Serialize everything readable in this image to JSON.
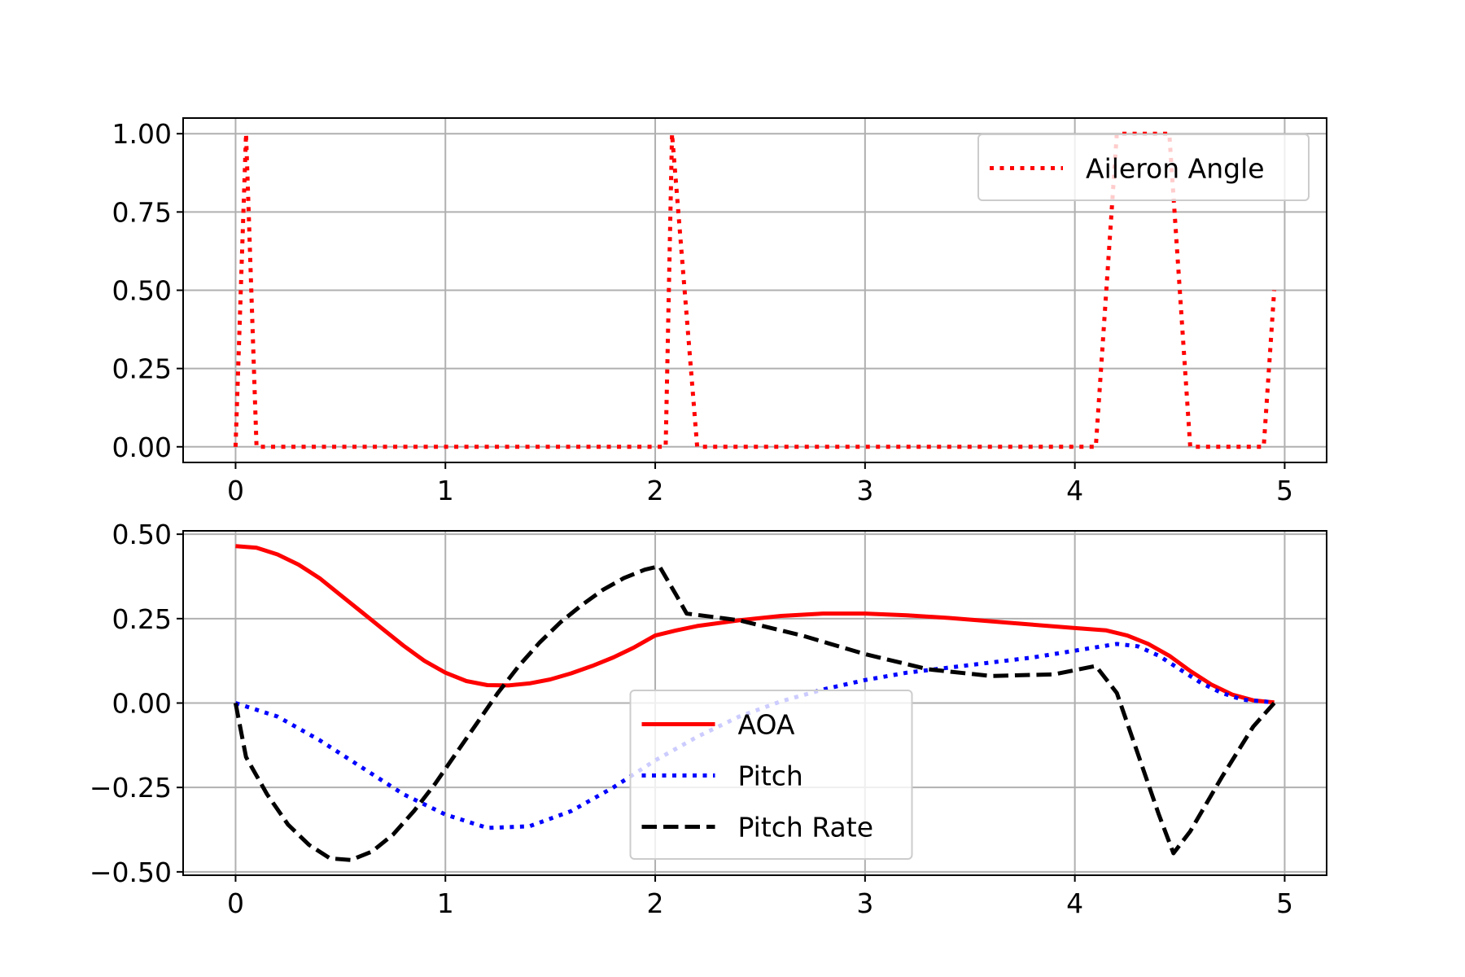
{
  "chart_data": [
    {
      "type": "line",
      "title": "",
      "xlabel": "",
      "ylabel": "",
      "xlim": [
        -0.25,
        5.2
      ],
      "ylim": [
        -0.05,
        1.05
      ],
      "xticks": [
        0,
        1,
        2,
        3,
        4,
        5
      ],
      "yticks": [
        0,
        0.25,
        0.5,
        0.75,
        1
      ],
      "x_tick_labels": [
        "0",
        "1",
        "2",
        "3",
        "4",
        "5"
      ],
      "y_tick_labels": [
        "0.00",
        "0.25",
        "0.50",
        "0.75",
        "1.00"
      ],
      "grid": true,
      "legend_position": "upper right",
      "series": [
        {
          "name": "Aileron Angle",
          "color": "#ff0000",
          "style": "dotted",
          "points": [
            [
              0,
              0
            ],
            [
              0.05,
              1
            ],
            [
              0.1,
              0
            ],
            [
              0.15,
              0
            ],
            [
              2.0,
              0
            ],
            [
              2.05,
              0
            ],
            [
              2.08,
              1
            ],
            [
              2.2,
              0
            ],
            [
              4.1,
              0
            ],
            [
              4.2,
              1
            ],
            [
              4.45,
              1
            ],
            [
              4.55,
              0
            ],
            [
              4.9,
              0
            ],
            [
              4.95,
              0.5
            ]
          ]
        }
      ]
    },
    {
      "type": "line",
      "title": "",
      "xlabel": "",
      "ylabel": "",
      "xlim": [
        -0.25,
        5.2
      ],
      "ylim": [
        -0.51,
        0.51
      ],
      "xticks": [
        0,
        1,
        2,
        3,
        4,
        5
      ],
      "yticks": [
        -0.5,
        -0.25,
        0,
        0.25,
        0.5
      ],
      "x_tick_labels": [
        "0",
        "1",
        "2",
        "3",
        "4",
        "5"
      ],
      "y_tick_labels": [
        "−0.50",
        "−0.25",
        "0.00",
        "0.25",
        "0.50"
      ],
      "grid": true,
      "legend_position": "lower center",
      "series": [
        {
          "name": "AOA",
          "color": "#ff0000",
          "style": "solid",
          "points": [
            [
              0,
              0.465
            ],
            [
              0.1,
              0.46
            ],
            [
              0.2,
              0.44
            ],
            [
              0.3,
              0.41
            ],
            [
              0.4,
              0.37
            ],
            [
              0.5,
              0.32
            ],
            [
              0.6,
              0.27
            ],
            [
              0.7,
              0.22
            ],
            [
              0.8,
              0.17
            ],
            [
              0.9,
              0.125
            ],
            [
              1.0,
              0.09
            ],
            [
              1.1,
              0.065
            ],
            [
              1.2,
              0.053
            ],
            [
              1.3,
              0.052
            ],
            [
              1.4,
              0.058
            ],
            [
              1.5,
              0.07
            ],
            [
              1.6,
              0.088
            ],
            [
              1.7,
              0.11
            ],
            [
              1.8,
              0.135
            ],
            [
              1.9,
              0.165
            ],
            [
              2.0,
              0.2
            ],
            [
              2.1,
              0.215
            ],
            [
              2.2,
              0.228
            ],
            [
              2.4,
              0.245
            ],
            [
              2.6,
              0.258
            ],
            [
              2.8,
              0.265
            ],
            [
              3.0,
              0.265
            ],
            [
              3.2,
              0.26
            ],
            [
              3.4,
              0.252
            ],
            [
              3.6,
              0.242
            ],
            [
              3.8,
              0.232
            ],
            [
              4.0,
              0.222
            ],
            [
              4.15,
              0.215
            ],
            [
              4.25,
              0.2
            ],
            [
              4.35,
              0.175
            ],
            [
              4.45,
              0.14
            ],
            [
              4.55,
              0.095
            ],
            [
              4.65,
              0.055
            ],
            [
              4.75,
              0.025
            ],
            [
              4.85,
              0.008
            ],
            [
              4.95,
              0.002
            ]
          ]
        },
        {
          "name": "Pitch",
          "color": "#0000ff",
          "style": "dotted",
          "points": [
            [
              0,
              0
            ],
            [
              0.2,
              -0.04
            ],
            [
              0.4,
              -0.11
            ],
            [
              0.6,
              -0.19
            ],
            [
              0.8,
              -0.27
            ],
            [
              1.0,
              -0.33
            ],
            [
              1.2,
              -0.37
            ],
            [
              1.4,
              -0.365
            ],
            [
              1.6,
              -0.32
            ],
            [
              1.8,
              -0.25
            ],
            [
              2.0,
              -0.17
            ],
            [
              2.2,
              -0.1
            ],
            [
              2.4,
              -0.04
            ],
            [
              2.6,
              0.005
            ],
            [
              2.8,
              0.04
            ],
            [
              3.0,
              0.068
            ],
            [
              3.2,
              0.09
            ],
            [
              3.4,
              0.105
            ],
            [
              3.6,
              0.12
            ],
            [
              3.8,
              0.135
            ],
            [
              4.0,
              0.155
            ],
            [
              4.2,
              0.175
            ],
            [
              4.3,
              0.168
            ],
            [
              4.4,
              0.14
            ],
            [
              4.5,
              0.1
            ],
            [
              4.6,
              0.06
            ],
            [
              4.7,
              0.03
            ],
            [
              4.8,
              0.01
            ],
            [
              4.95,
              0.002
            ]
          ]
        },
        {
          "name": "Pitch Rate",
          "color": "#000000",
          "style": "dashed",
          "points": [
            [
              0,
              0
            ],
            [
              0.05,
              -0.16
            ],
            [
              0.15,
              -0.27
            ],
            [
              0.25,
              -0.36
            ],
            [
              0.35,
              -0.42
            ],
            [
              0.45,
              -0.46
            ],
            [
              0.55,
              -0.465
            ],
            [
              0.65,
              -0.44
            ],
            [
              0.75,
              -0.39
            ],
            [
              0.85,
              -0.32
            ],
            [
              0.95,
              -0.24
            ],
            [
              1.05,
              -0.15
            ],
            [
              1.15,
              -0.06
            ],
            [
              1.25,
              0.03
            ],
            [
              1.35,
              0.11
            ],
            [
              1.45,
              0.18
            ],
            [
              1.55,
              0.24
            ],
            [
              1.65,
              0.29
            ],
            [
              1.75,
              0.335
            ],
            [
              1.85,
              0.37
            ],
            [
              1.95,
              0.395
            ],
            [
              2.02,
              0.405
            ],
            [
              2.1,
              0.32
            ],
            [
              2.15,
              0.265
            ],
            [
              2.4,
              0.245
            ],
            [
              2.7,
              0.2
            ],
            [
              3.0,
              0.145
            ],
            [
              3.3,
              0.1
            ],
            [
              3.6,
              0.08
            ],
            [
              3.9,
              0.085
            ],
            [
              4.1,
              0.11
            ],
            [
              4.2,
              0.03
            ],
            [
              4.3,
              -0.15
            ],
            [
              4.4,
              -0.33
            ],
            [
              4.47,
              -0.445
            ],
            [
              4.55,
              -0.38
            ],
            [
              4.7,
              -0.22
            ],
            [
              4.85,
              -0.07
            ],
            [
              4.95,
              0.0
            ]
          ]
        }
      ]
    }
  ]
}
